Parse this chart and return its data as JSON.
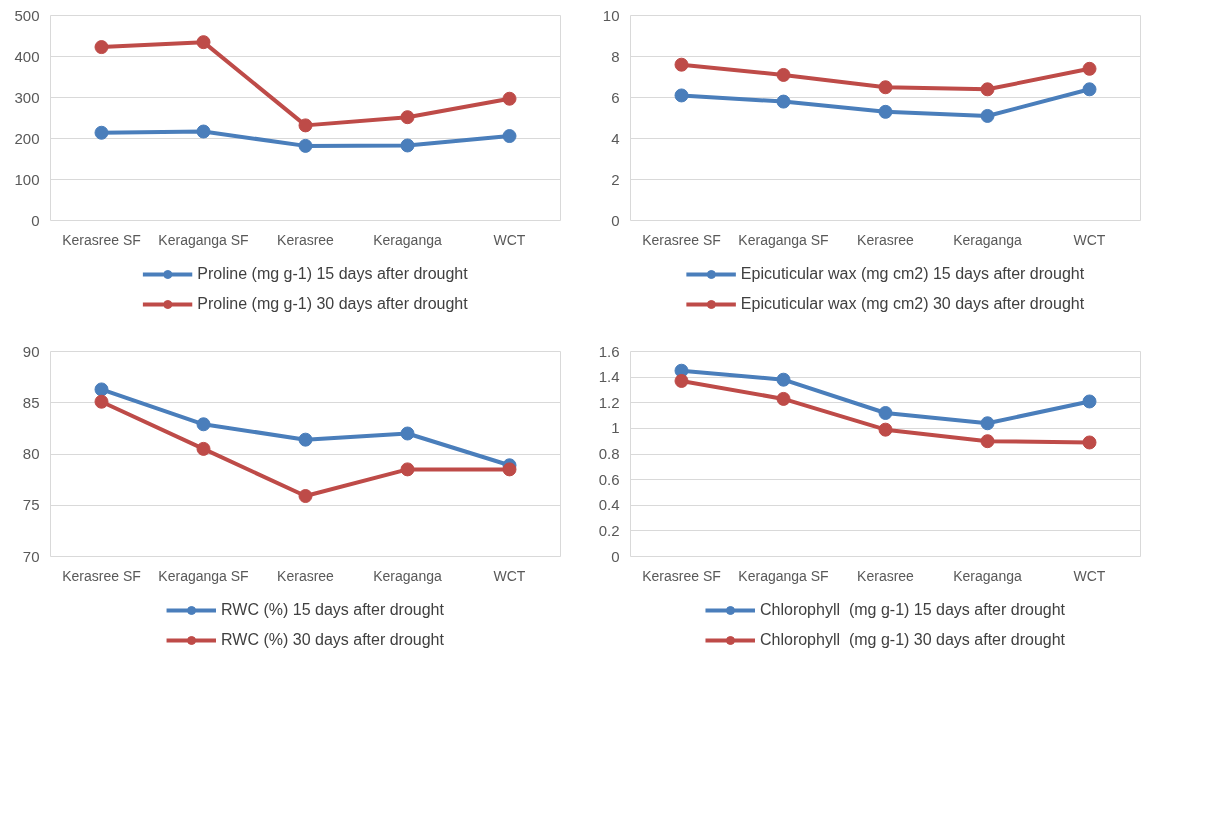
{
  "chart_data": [
    {
      "type": "line",
      "categories": [
        "Kerasree SF",
        "Keraganga SF",
        "Kerasree",
        "Keraganga",
        "WCT"
      ],
      "ylim": [
        0,
        500
      ],
      "yticks": [
        0,
        100,
        200,
        300,
        400,
        500
      ],
      "grid": "y",
      "legend": "bottom",
      "marker": "circle",
      "line_style": "solid",
      "series": [
        {
          "name": "Proline (mg g-1) 15 days after drought",
          "color": "#4a7ebb",
          "values": [
            214,
            217,
            182,
            183,
            206
          ]
        },
        {
          "name": "Proline (mg g-1) 30 days after drought",
          "color": "#be4b48",
          "values": [
            423,
            435,
            232,
            252,
            297
          ]
        }
      ]
    },
    {
      "type": "line",
      "categories": [
        "Kerasree SF",
        "Keraganga SF",
        "Kerasree",
        "Keraganga",
        "WCT"
      ],
      "ylim": [
        0,
        10
      ],
      "yticks": [
        0,
        2,
        4,
        6,
        8,
        10
      ],
      "grid": "y",
      "legend": "bottom",
      "marker": "circle",
      "line_style": "solid",
      "series": [
        {
          "name": "Epicuticular wax (mg cm2) 15 days after drought",
          "color": "#4a7ebb",
          "values": [
            6.1,
            5.8,
            5.3,
            5.1,
            6.4
          ]
        },
        {
          "name": "Epicuticular wax (mg cm2) 30 days after drought",
          "color": "#be4b48",
          "values": [
            7.6,
            7.1,
            6.5,
            6.4,
            7.4
          ]
        }
      ]
    },
    {
      "type": "line",
      "categories": [
        "Kerasree SF",
        "Keraganga SF",
        "Kerasree",
        "Keraganga",
        "WCT"
      ],
      "ylim": [
        70,
        90
      ],
      "yticks": [
        70,
        75,
        80,
        85,
        90
      ],
      "grid": "y",
      "legend": "bottom",
      "marker": "circle",
      "line_style": "solid",
      "series": [
        {
          "name": "RWC (%) 15 days after drought",
          "color": "#4a7ebb",
          "values": [
            86.3,
            82.9,
            81.4,
            82.0,
            78.9
          ]
        },
        {
          "name": "RWC (%) 30 days after drought",
          "color": "#be4b48",
          "values": [
            85.1,
            80.5,
            75.9,
            78.5,
            78.5
          ]
        }
      ]
    },
    {
      "type": "line",
      "categories": [
        "Kerasree SF",
        "Keraganga SF",
        "Kerasree",
        "Keraganga",
        "WCT"
      ],
      "ylim": [
        0,
        1.6
      ],
      "yticks": [
        0,
        0.2,
        0.4,
        0.6,
        0.8,
        1,
        1.2,
        1.4,
        1.6
      ],
      "grid": "y",
      "legend": "bottom",
      "marker": "circle",
      "line_style": "solid",
      "series": [
        {
          "name": "Chlorophyll  (mg g-1) 15 days after drought",
          "color": "#4a7ebb",
          "values": [
            1.45,
            1.38,
            1.12,
            1.04,
            1.21
          ]
        },
        {
          "name": "Chlorophyll  (mg g-1) 30 days after drought",
          "color": "#be4b48",
          "values": [
            1.37,
            1.23,
            0.99,
            0.9,
            0.89
          ]
        }
      ]
    }
  ]
}
